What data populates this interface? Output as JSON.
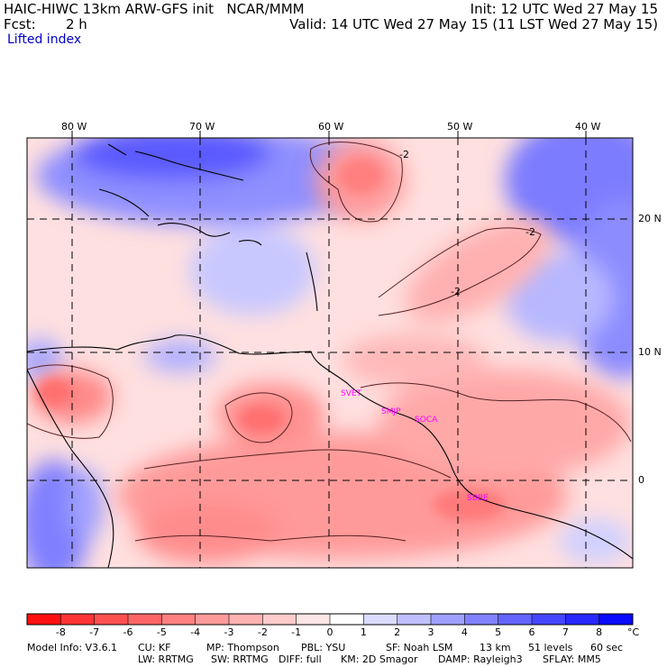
{
  "header": {
    "title_left": "HAIC-HIWC 13km ARW-GFS init   NCAR/MMM",
    "fcst_label": "Fcst:",
    "fcst_value": "2 h",
    "field_name": "Lifted index",
    "init": "Init: 12 UTC Wed 27 May 15",
    "valid": "Valid: 14 UTC Wed 27 May 15 (11 LST Wed 27 May 15)"
  },
  "map": {
    "lon_labels": [
      "80 W",
      "70 W",
      "60 W",
      "50 W",
      "40 W"
    ],
    "lat_labels": [
      "20 N",
      "10 N",
      "0"
    ],
    "contour_label": "-2",
    "stations": [
      "SVET",
      "SMJP",
      "SOCA",
      "SBBE"
    ]
  },
  "colorbar": {
    "labels": [
      "-8",
      "-7",
      "-6",
      "-5",
      "-4",
      "-3",
      "-2",
      "-1",
      "0",
      "1",
      "2",
      "3",
      "4",
      "5",
      "6",
      "7",
      "8"
    ],
    "unit": "°C",
    "colors": [
      "#ff1010",
      "#ff3434",
      "#ff5050",
      "#ff6666",
      "#ff8181",
      "#ff9a9a",
      "#ffb2b2",
      "#ffcccc",
      "#ffe6e6",
      "#ffffff",
      "#dcdcff",
      "#c0c0ff",
      "#a0a0ff",
      "#8282ff",
      "#6464ff",
      "#4646ff",
      "#2828ff",
      "#0a0aff"
    ]
  },
  "footer": {
    "model_info": "Model Info: V3.6.1",
    "cu": "CU: KF",
    "mp": "MP: Thompson",
    "pbl": "PBL: YSU",
    "sf": "SF: Noah LSM",
    "res": "13 km",
    "levels": "51 levels",
    "dt": "60 sec",
    "lw": "LW: RRTMG",
    "sw": "SW: RRTMG",
    "diff": "DIFF: full",
    "km": "KM: 2D Smagor",
    "damp": "DAMP: Rayleigh3",
    "sflay": "SFLAY: MM5"
  }
}
